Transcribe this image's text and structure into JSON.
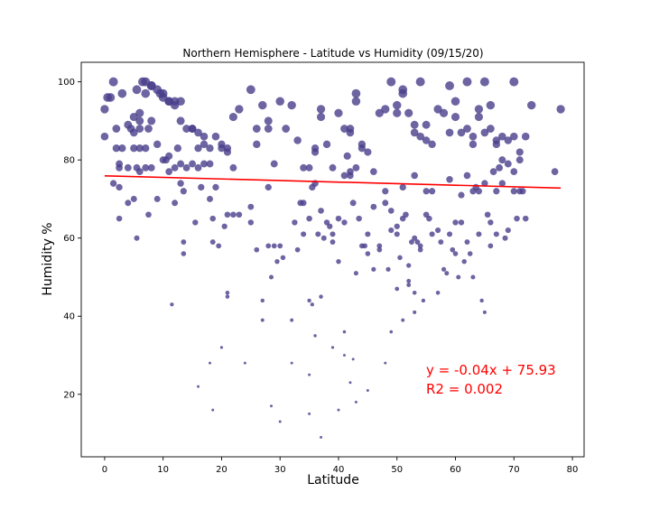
{
  "chart_data": {
    "type": "scatter",
    "title": "Northern Hemisphere - Latitude vs Humidity (09/15/20)",
    "xlabel": "Latitude",
    "ylabel": "Humidity %",
    "xlim": [
      -4,
      82
    ],
    "ylim": [
      4,
      105
    ],
    "xticks": [
      0,
      10,
      20,
      30,
      40,
      50,
      60,
      70,
      80
    ],
    "yticks": [
      20,
      40,
      60,
      80,
      100
    ],
    "grid": false,
    "colors": {
      "points": "#483d8b",
      "regression": "#ff0000",
      "annotation": "#ff0000"
    },
    "regression": {
      "slope": -0.04,
      "intercept": 75.93,
      "x_range": [
        0,
        78
      ]
    },
    "annotations": [
      "y = -0.04x + 75.93",
      "R2 = 0.002"
    ],
    "points": [
      [
        0,
        93
      ],
      [
        0,
        86
      ],
      [
        0.5,
        96
      ],
      [
        1,
        96
      ],
      [
        1.5,
        100
      ],
      [
        2,
        88
      ],
      [
        2,
        83
      ],
      [
        3,
        83
      ],
      [
        2.5,
        79
      ],
      [
        2.5,
        78
      ],
      [
        1.5,
        74
      ],
      [
        2.5,
        73
      ],
      [
        2.5,
        65
      ],
      [
        4,
        69
      ],
      [
        4.5,
        88
      ],
      [
        4,
        89
      ],
      [
        5,
        83
      ],
      [
        5,
        87
      ],
      [
        5,
        91
      ],
      [
        6,
        92
      ],
      [
        6,
        90
      ],
      [
        6,
        88
      ],
      [
        5.5,
        78
      ],
      [
        6,
        77
      ],
      [
        6,
        83
      ],
      [
        7,
        83
      ],
      [
        7,
        78
      ],
      [
        8,
        78
      ],
      [
        7,
        100
      ],
      [
        8,
        99
      ],
      [
        9,
        98
      ],
      [
        10,
        97
      ],
      [
        10,
        96
      ],
      [
        11,
        95
      ],
      [
        12,
        95
      ],
      [
        12,
        94
      ],
      [
        13,
        95
      ],
      [
        8,
        90
      ],
      [
        7.5,
        88
      ],
      [
        9,
        84
      ],
      [
        10,
        80
      ],
      [
        11,
        81
      ],
      [
        12,
        78
      ],
      [
        12.5,
        83
      ],
      [
        13,
        79
      ],
      [
        14,
        88
      ],
      [
        15,
        88
      ],
      [
        16,
        87
      ],
      [
        17,
        86
      ],
      [
        17,
        84
      ],
      [
        18,
        83
      ],
      [
        19,
        86
      ],
      [
        20,
        84
      ],
      [
        20,
        83
      ],
      [
        21,
        83
      ],
      [
        21,
        82
      ],
      [
        22,
        78
      ],
      [
        22,
        91
      ],
      [
        23,
        93
      ],
      [
        25,
        98
      ],
      [
        26,
        88
      ],
      [
        26,
        84
      ],
      [
        27,
        94
      ],
      [
        28,
        90
      ],
      [
        28,
        88
      ],
      [
        29,
        79
      ],
      [
        30,
        95
      ],
      [
        31,
        88
      ],
      [
        32,
        94
      ],
      [
        33,
        85
      ],
      [
        34,
        78
      ],
      [
        35,
        78
      ],
      [
        36,
        83
      ],
      [
        36,
        82
      ],
      [
        37,
        93
      ],
      [
        37,
        91
      ],
      [
        38,
        84
      ],
      [
        39,
        78
      ],
      [
        40,
        92
      ],
      [
        41,
        88
      ],
      [
        42,
        88
      ],
      [
        42,
        87
      ],
      [
        43,
        95
      ],
      [
        43,
        97
      ],
      [
        44,
        84
      ],
      [
        44,
        83
      ],
      [
        45,
        82
      ],
      [
        46,
        77
      ],
      [
        47,
        92
      ],
      [
        48,
        93
      ],
      [
        49,
        100
      ],
      [
        50,
        94
      ],
      [
        50,
        92
      ],
      [
        51,
        98
      ],
      [
        51,
        97
      ],
      [
        52,
        92
      ],
      [
        53,
        89
      ],
      [
        53,
        87
      ],
      [
        54,
        100
      ],
      [
        54,
        86
      ],
      [
        55,
        89
      ],
      [
        55,
        85
      ],
      [
        56,
        84
      ],
      [
        57,
        93
      ],
      [
        58,
        92
      ],
      [
        59,
        99
      ],
      [
        59,
        87
      ],
      [
        60,
        95
      ],
      [
        60,
        91
      ],
      [
        61,
        87
      ],
      [
        62,
        100
      ],
      [
        62,
        88
      ],
      [
        63,
        86
      ],
      [
        63,
        84
      ],
      [
        64,
        93
      ],
      [
        64,
        91
      ],
      [
        65,
        100
      ],
      [
        65,
        87
      ],
      [
        66,
        94
      ],
      [
        66,
        88
      ],
      [
        67,
        85
      ],
      [
        67,
        84
      ],
      [
        68,
        86
      ],
      [
        69,
        85
      ],
      [
        70,
        100
      ],
      [
        70,
        86
      ],
      [
        71,
        82
      ],
      [
        71,
        80
      ],
      [
        73,
        94
      ],
      [
        72,
        86
      ],
      [
        3,
        97
      ],
      [
        5.5,
        98
      ],
      [
        6.5,
        100
      ],
      [
        7,
        97
      ],
      [
        8,
        99
      ],
      [
        9.5,
        97
      ],
      [
        11,
        95
      ],
      [
        13,
        90
      ],
      [
        15,
        88
      ],
      [
        16,
        83
      ],
      [
        17,
        79
      ],
      [
        18,
        79
      ],
      [
        19,
        73
      ],
      [
        16,
        78
      ],
      [
        15,
        79
      ],
      [
        14,
        78
      ],
      [
        13,
        74
      ],
      [
        12,
        69
      ],
      [
        13.5,
        72
      ],
      [
        4,
        78
      ],
      [
        5,
        70
      ],
      [
        5.5,
        60
      ],
      [
        7.5,
        66
      ],
      [
        9,
        70
      ],
      [
        10.5,
        80
      ],
      [
        11.5,
        43
      ],
      [
        13.5,
        59
      ],
      [
        13.5,
        56
      ],
      [
        15.5,
        64
      ],
      [
        16.5,
        73
      ],
      [
        18.5,
        59
      ],
      [
        18.5,
        65
      ],
      [
        19.5,
        58
      ],
      [
        20.5,
        63
      ],
      [
        21,
        66
      ],
      [
        22,
        66
      ],
      [
        23,
        66
      ],
      [
        25,
        68
      ],
      [
        25,
        64
      ],
      [
        26,
        57
      ],
      [
        27,
        44
      ],
      [
        27,
        39
      ],
      [
        28,
        73
      ],
      [
        28,
        58
      ],
      [
        28.5,
        50
      ],
      [
        29,
        58
      ],
      [
        29.5,
        54
      ],
      [
        30,
        58
      ],
      [
        30.5,
        55
      ],
      [
        32,
        39
      ],
      [
        32.5,
        64
      ],
      [
        33,
        57
      ],
      [
        33.5,
        69
      ],
      [
        34,
        69
      ],
      [
        34,
        61
      ],
      [
        35,
        65
      ],
      [
        35,
        44
      ],
      [
        35.5,
        43
      ],
      [
        35.5,
        73
      ],
      [
        36,
        74
      ],
      [
        36.5,
        61
      ],
      [
        37,
        67
      ],
      [
        37,
        45
      ],
      [
        37.5,
        60
      ],
      [
        38,
        64
      ],
      [
        38.5,
        63
      ],
      [
        39,
        61
      ],
      [
        39,
        59
      ],
      [
        40,
        65
      ],
      [
        40,
        54
      ],
      [
        41,
        76
      ],
      [
        41,
        64
      ],
      [
        41.5,
        81
      ],
      [
        42,
        76
      ],
      [
        42,
        77
      ],
      [
        42.5,
        69
      ],
      [
        43,
        78
      ],
      [
        43,
        51
      ],
      [
        43.5,
        65
      ],
      [
        44,
        58
      ],
      [
        44.5,
        58
      ],
      [
        45,
        61
      ],
      [
        45,
        56
      ],
      [
        46,
        68
      ],
      [
        46,
        52
      ],
      [
        47,
        58
      ],
      [
        47,
        57
      ],
      [
        48,
        72
      ],
      [
        48,
        69
      ],
      [
        48.5,
        52
      ],
      [
        49,
        36
      ],
      [
        49,
        62
      ],
      [
        49,
        67
      ],
      [
        50,
        63
      ],
      [
        50,
        61
      ],
      [
        50.5,
        55
      ],
      [
        51,
        73
      ],
      [
        51,
        65
      ],
      [
        51.5,
        66
      ],
      [
        52,
        53
      ],
      [
        52,
        48
      ],
      [
        53,
        76
      ],
      [
        53,
        60
      ],
      [
        53.5,
        59
      ],
      [
        54,
        58
      ],
      [
        54,
        57
      ],
      [
        54.5,
        44
      ],
      [
        55,
        72
      ],
      [
        55,
        66
      ],
      [
        55.5,
        65
      ],
      [
        56,
        61
      ],
      [
        56,
        72
      ],
      [
        57,
        62
      ],
      [
        57,
        46
      ],
      [
        57.5,
        59
      ],
      [
        58,
        52
      ],
      [
        58.5,
        51
      ],
      [
        59,
        75
      ],
      [
        59,
        61
      ],
      [
        59.5,
        57
      ],
      [
        60,
        64
      ],
      [
        60,
        56
      ],
      [
        60.5,
        50
      ],
      [
        61,
        64
      ],
      [
        61,
        71
      ],
      [
        61.5,
        54
      ],
      [
        62,
        76
      ],
      [
        62,
        59
      ],
      [
        62.5,
        56
      ],
      [
        63,
        50
      ],
      [
        63,
        72
      ],
      [
        63.5,
        73
      ],
      [
        64,
        72
      ],
      [
        64,
        61
      ],
      [
        64.5,
        44
      ],
      [
        65,
        41
      ],
      [
        65,
        74
      ],
      [
        65.5,
        66
      ],
      [
        66,
        64
      ],
      [
        66,
        58
      ],
      [
        66.5,
        77
      ],
      [
        67,
        61
      ],
      [
        67,
        72
      ],
      [
        67.5,
        78
      ],
      [
        68,
        80
      ],
      [
        68,
        74
      ],
      [
        68.5,
        60
      ],
      [
        69,
        62
      ],
      [
        69,
        79
      ],
      [
        70,
        77
      ],
      [
        70,
        72
      ],
      [
        70.5,
        65
      ],
      [
        71,
        72
      ],
      [
        71.5,
        72
      ],
      [
        72,
        65
      ],
      [
        77,
        77
      ],
      [
        78,
        93
      ],
      [
        11,
        77
      ],
      [
        18,
        70
      ],
      [
        21,
        46
      ],
      [
        21,
        45
      ],
      [
        24,
        28
      ],
      [
        20,
        32
      ],
      [
        18,
        28
      ],
      [
        16,
        22
      ],
      [
        18.5,
        16
      ],
      [
        28.5,
        17
      ],
      [
        30,
        13
      ],
      [
        32,
        28
      ],
      [
        35,
        25
      ],
      [
        35,
        15
      ],
      [
        36,
        35
      ],
      [
        37,
        9
      ],
      [
        39,
        32
      ],
      [
        40,
        16
      ],
      [
        41,
        36
      ],
      [
        41,
        30
      ],
      [
        42,
        23
      ],
      [
        42.5,
        29
      ],
      [
        43,
        18
      ],
      [
        45,
        21
      ],
      [
        48,
        28
      ],
      [
        50,
        47
      ],
      [
        51,
        39
      ],
      [
        52,
        49
      ],
      [
        52.5,
        59
      ],
      [
        53,
        46
      ],
      [
        53,
        41
      ]
    ]
  }
}
